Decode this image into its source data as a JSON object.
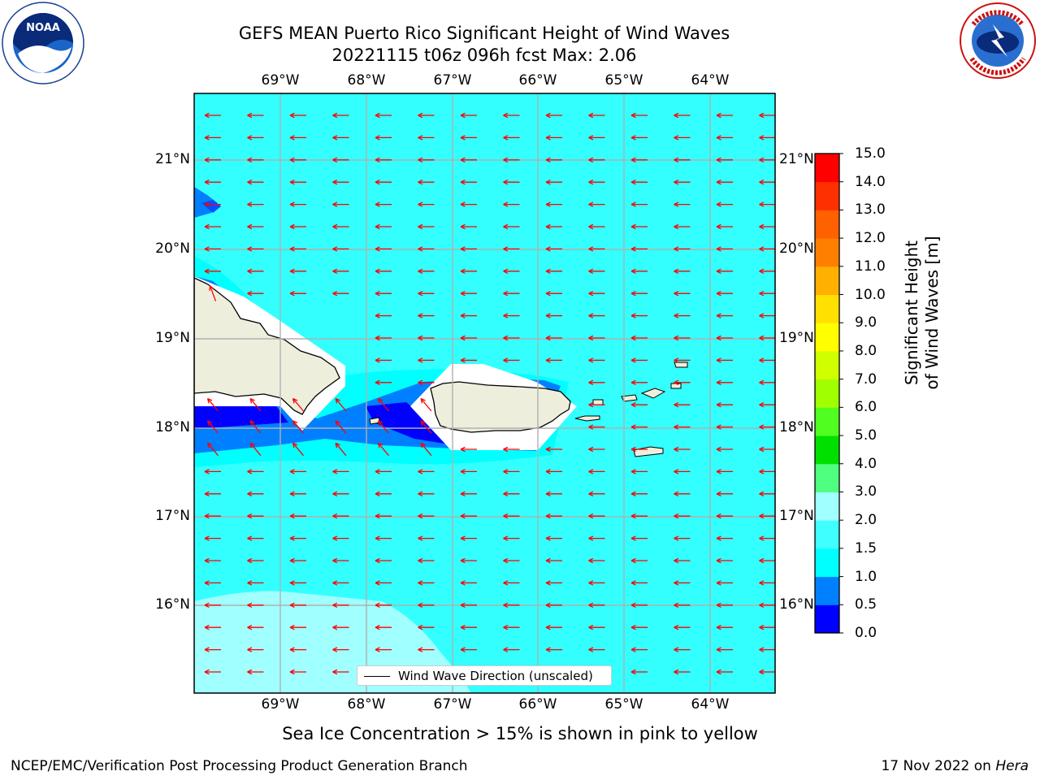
{
  "title": {
    "line1": "GEFS MEAN Puerto Rico Significant Height of Wind Waves",
    "line2": "20221115 t06z 096h fcst   Max: 2.06"
  },
  "logos": {
    "left": {
      "icon": "noaa-logo",
      "text": "NOAA"
    },
    "right": {
      "icon": "national-weather-service-logo",
      "text": "NATIONAL WEATHER SERVICE"
    }
  },
  "map": {
    "lon_labels": [
      "69°W",
      "68°W",
      "67°W",
      "66°W",
      "65°W",
      "64°W"
    ],
    "lat_labels": [
      "21°N",
      "20°N",
      "19°N",
      "18°N",
      "17°N",
      "16°N"
    ],
    "arrow_color": "#ff0000",
    "ocean_color": "#33ffff",
    "land_color": "#eeeedd",
    "legend_label": "Wind Wave Direction (unscaled)"
  },
  "colorbar": {
    "title": "Significant Height of Wind Waves [m]",
    "ticks": [
      "15.0",
      "14.0",
      "13.0",
      "12.0",
      "11.0",
      "10.0",
      "9.0",
      "8.0",
      "7.0",
      "6.0",
      "5.0",
      "4.0",
      "3.0",
      "2.0",
      "1.5",
      "1.0",
      "0.5",
      "0.0"
    ],
    "colors": [
      "#0000ff",
      "#0080ff",
      "#00ffff",
      "#40ffff",
      "#a0ffff",
      "#50ff80",
      "#00e000",
      "#50ff20",
      "#a0ff00",
      "#d0ff00",
      "#ffff00",
      "#ffe000",
      "#ffb000",
      "#ff8000",
      "#ff6000",
      "#ff3000",
      "#ff0000"
    ]
  },
  "subtitle": "Sea Ice Concentration > 15% is shown in pink to yellow",
  "footer": {
    "left": "NCEP/EMC/Verification Post Processing Product Generation Branch",
    "right_prefix": "17 Nov 2022 on ",
    "right_italic": "Hera"
  }
}
